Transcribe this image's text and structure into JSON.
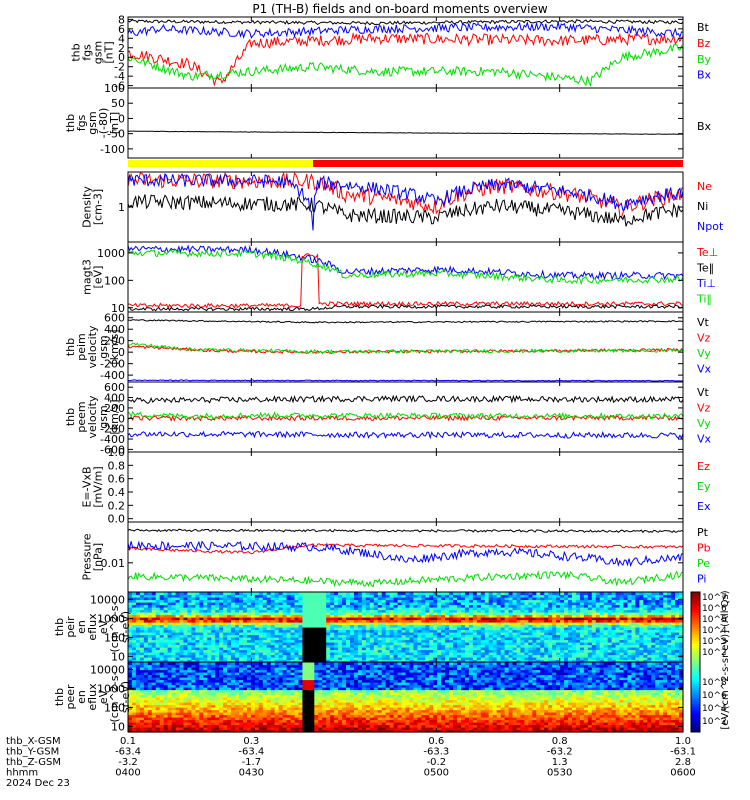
{
  "title": "P1 (TH-B) fields and on-board moments overview",
  "colors": {
    "black": "#000000",
    "red": "#ff0000",
    "green": "#00dd00",
    "blue": "#0000ff",
    "yellow": "#ffff00",
    "orange": "#ff8c00"
  },
  "mode_bar": {
    "segments": [
      {
        "from": 0.1,
        "to": 0.4,
        "color": "#ffff00"
      },
      {
        "from": 0.4,
        "to": 1.0,
        "color": "#ff0000"
      }
    ]
  },
  "chart_data": [
    {
      "id": "fgs",
      "type": "line",
      "ylabel": [
        "thb",
        "fgs",
        "gsm",
        "[nT]"
      ],
      "ylim": [
        -6.5,
        8.5
      ],
      "ticks": [
        [
          "8",
          "8"
        ],
        [
          "6",
          "6"
        ],
        [
          "4",
          "4"
        ],
        [
          "2",
          "2"
        ],
        [
          "0",
          "0"
        ],
        [
          "-2",
          "-2"
        ],
        [
          "-4",
          "-4"
        ],
        [
          "-6",
          "-6"
        ]
      ],
      "series": [
        {
          "name": "Bt",
          "color": "#000000",
          "base": 7.5,
          "noise": 0.35,
          "knots": [
            [
              0.1,
              7.6
            ],
            [
              0.5,
              7.2
            ],
            [
              0.8,
              7.6
            ],
            [
              1.0,
              7.4
            ]
          ]
        },
        {
          "name": "Bz",
          "color": "#ff0000",
          "base": 3,
          "noise": 1.2,
          "knots": [
            [
              0.1,
              1
            ],
            [
              0.2,
              -1.5
            ],
            [
              0.25,
              -5.5
            ],
            [
              0.3,
              3
            ],
            [
              0.5,
              4
            ],
            [
              0.8,
              3.5
            ],
            [
              1.0,
              4
            ]
          ]
        },
        {
          "name": "By",
          "color": "#00dd00",
          "base": -2,
          "noise": 1.0,
          "knots": [
            [
              0.1,
              0
            ],
            [
              0.2,
              -4
            ],
            [
              0.4,
              -2
            ],
            [
              0.5,
              -3
            ],
            [
              0.7,
              -3
            ],
            [
              0.85,
              -5
            ],
            [
              0.9,
              0
            ],
            [
              1.0,
              2
            ]
          ]
        },
        {
          "name": "Bx",
          "color": "#0000ff",
          "base": 5,
          "noise": 0.9,
          "knots": [
            [
              0.1,
              5
            ],
            [
              0.15,
              6
            ],
            [
              0.3,
              5
            ],
            [
              0.5,
              6
            ],
            [
              0.8,
              6.5
            ],
            [
              1.0,
              5
            ]
          ]
        }
      ]
    },
    {
      "id": "fgs_dsl",
      "type": "line",
      "ylabel": [
        "thb",
        "fgs",
        "gsm",
        "-(-80)",
        "[nT]"
      ],
      "ylim": [
        -130,
        100
      ],
      "ticks": [
        [
          "100",
          "100"
        ],
        [
          "50",
          "50"
        ],
        [
          "0",
          "0"
        ],
        [
          "-50",
          "-50"
        ],
        [
          "-100",
          "-100"
        ]
      ],
      "series": [
        {
          "name": "Bx",
          "color": "#000000",
          "base": -48,
          "noise": 0.6,
          "knots": [
            [
              0.1,
              -42
            ],
            [
              0.5,
              -47
            ],
            [
              1.0,
              -52
            ]
          ]
        }
      ]
    },
    {
      "id": "density",
      "type": "line",
      "log": true,
      "ylabel": [
        "Density",
        "[cm-3]"
      ],
      "ylim": [
        0.05,
        20
      ],
      "ticks": [
        [
          "1",
          "1"
        ]
      ],
      "series": [
        {
          "name": "Ne",
          "color": "#ff0000",
          "base": 8,
          "noise": 0.6,
          "knots": [
            [
              0.1,
              10
            ],
            [
              0.4,
              9
            ],
            [
              0.45,
              3
            ],
            [
              0.6,
              1
            ],
            [
              0.7,
              6
            ],
            [
              0.9,
              0.8
            ],
            [
              1.0,
              3
            ]
          ]
        },
        {
          "name": "Ni",
          "color": "#000000",
          "base": 1.5,
          "noise": 0.55,
          "knots": [
            [
              0.1,
              1.6
            ],
            [
              0.4,
              1.2
            ],
            [
              0.45,
              0.5
            ],
            [
              0.6,
              0.4
            ],
            [
              0.7,
              1.1
            ],
            [
              0.9,
              0.3
            ],
            [
              1.0,
              0.8
            ]
          ]
        },
        {
          "name": "Npot",
          "color": "#0000ff",
          "base": 8,
          "noise": 0.5,
          "knots": [
            [
              0.1,
              10
            ],
            [
              0.35,
              9
            ],
            [
              0.4,
              0.1
            ],
            [
              0.41,
              8
            ],
            [
              0.6,
              1.5
            ],
            [
              0.7,
              7
            ],
            [
              0.9,
              1.2
            ],
            [
              1.0,
              3.5
            ]
          ]
        }
      ]
    },
    {
      "id": "temp",
      "type": "line",
      "log": true,
      "ylabel": [
        "magt3",
        "[eV]"
      ],
      "ylim": [
        7,
        2500
      ],
      "ticks": [
        [
          "1000",
          "1000"
        ],
        [
          "100",
          "100"
        ],
        [
          "10",
          "10"
        ]
      ],
      "series": [
        {
          "name": "Te⊥",
          "color": "#ff0000",
          "base": 12,
          "noise": 0.15,
          "knots": [
            [
              0.1,
              12
            ],
            [
              0.38,
              12
            ],
            [
              0.38,
              800
            ],
            [
              0.41,
              800
            ],
            [
              0.41,
              14
            ],
            [
              1.0,
              14
            ]
          ]
        },
        {
          "name": "Te‖",
          "color": "#000000",
          "base": 11,
          "noise": 0.12,
          "knots": [
            [
              0.1,
              9
            ],
            [
              0.4,
              9
            ],
            [
              0.45,
              11
            ],
            [
              1.0,
              11
            ]
          ]
        },
        {
          "name": "Ti⊥",
          "color": "#0000ff",
          "base": 1200,
          "noise": 0.25,
          "knots": [
            [
              0.1,
              1400
            ],
            [
              0.3,
              1300
            ],
            [
              0.45,
              200
            ],
            [
              0.6,
              250
            ],
            [
              0.8,
              150
            ],
            [
              1.0,
              150
            ]
          ]
        },
        {
          "name": "Ti‖",
          "color": "#00dd00",
          "base": 1000,
          "noise": 0.25,
          "knots": [
            [
              0.1,
              1000
            ],
            [
              0.3,
              950
            ],
            [
              0.45,
              150
            ],
            [
              0.6,
              180
            ],
            [
              0.8,
              100
            ],
            [
              1.0,
              110
            ]
          ]
        }
      ]
    },
    {
      "id": "peim_v",
      "type": "line",
      "ylabel": [
        "thb",
        "peim",
        "velocity",
        "gsm",
        "[km/s]"
      ],
      "ylim": [
        -520,
        700
      ],
      "ticks": [
        [
          "600",
          "600"
        ],
        [
          "400",
          "400"
        ],
        [
          "200",
          "200"
        ],
        [
          "0",
          "0"
        ],
        [
          "-200",
          "-200"
        ],
        [
          "-400",
          "-400"
        ]
      ],
      "series": [
        {
          "name": "Vt",
          "color": "#000000",
          "base": 520,
          "noise": 12,
          "knots": [
            [
              0.1,
              560
            ],
            [
              0.4,
              520
            ],
            [
              1.0,
              540
            ]
          ]
        },
        {
          "name": "Vz",
          "color": "#ff0000",
          "base": 30,
          "noise": 25,
          "knots": [
            [
              0.1,
              100
            ],
            [
              0.25,
              20
            ],
            [
              0.4,
              0
            ],
            [
              1.0,
              40
            ]
          ]
        },
        {
          "name": "Vy",
          "color": "#00dd00",
          "base": 20,
          "noise": 30,
          "knots": [
            [
              0.1,
              150
            ],
            [
              0.2,
              50
            ],
            [
              0.4,
              10
            ],
            [
              1.0,
              30
            ]
          ]
        },
        {
          "name": "Vx",
          "color": "#0000ff",
          "base": -500,
          "noise": 8,
          "knots": [
            [
              0.1,
              -490
            ],
            [
              1.0,
              -500
            ]
          ]
        }
      ]
    },
    {
      "id": "peem_v",
      "type": "line",
      "ylabel": [
        "thb",
        "peem",
        "velocity",
        "gsm",
        "[km/s]"
      ],
      "ylim": [
        -650,
        700
      ],
      "ticks": [
        [
          "600",
          "600"
        ],
        [
          "400",
          "400"
        ],
        [
          "200",
          "200"
        ],
        [
          "0",
          "0"
        ],
        [
          "-200",
          "-200"
        ],
        [
          "-400",
          "-400"
        ],
        [
          "-600",
          "-600"
        ]
      ],
      "series": [
        {
          "name": "Vt",
          "color": "#000000",
          "base": 350,
          "noise": 55,
          "knots": [
            [
              0.1,
              340
            ],
            [
              0.5,
              380
            ],
            [
              1.0,
              360
            ]
          ]
        },
        {
          "name": "Vz",
          "color": "#ff0000",
          "base": 0,
          "noise": 45,
          "knots": [
            [
              0.1,
              0
            ],
            [
              1.0,
              10
            ]
          ]
        },
        {
          "name": "Vy",
          "color": "#00dd00",
          "base": 80,
          "noise": 50,
          "knots": [
            [
              0.1,
              80
            ],
            [
              0.2,
              40
            ],
            [
              0.3,
              60
            ],
            [
              1.0,
              40
            ]
          ]
        },
        {
          "name": "Vx",
          "color": "#0000ff",
          "base": -300,
          "noise": 55,
          "knots": [
            [
              0.1,
              -300
            ],
            [
              0.5,
              -320
            ],
            [
              1.0,
              -330
            ]
          ]
        }
      ]
    },
    {
      "id": "efield",
      "type": "line",
      "ylabel": [
        "E=-VxB",
        "[mV/m]"
      ],
      "ylim": [
        -0.05,
        1.0
      ],
      "ticks": [
        [
          "1.0",
          "1.0"
        ],
        [
          "0.8",
          "0.8"
        ],
        [
          "0.6",
          "0.6"
        ],
        [
          "0.4",
          "0.4"
        ],
        [
          "0.2",
          "0.2"
        ],
        [
          "0.0",
          "0.0"
        ]
      ],
      "series": [
        {
          "name": "Ez",
          "color": "#ff0000",
          "base": 0,
          "noise": 0,
          "knots": []
        },
        {
          "name": "Ey",
          "color": "#00dd00",
          "base": 0,
          "noise": 0,
          "knots": []
        },
        {
          "name": "Ex",
          "color": "#0000ff",
          "base": 0,
          "noise": 0,
          "knots": []
        }
      ]
    },
    {
      "id": "pressure",
      "type": "line",
      "log": true,
      "ylabel": [
        "Pressure",
        "[nPa]"
      ],
      "ylim": [
        0.001,
        0.25
      ],
      "ticks": [
        [
          "0.01",
          "0.01"
        ]
      ],
      "series": [
        {
          "name": "Pt",
          "color": "#000000",
          "base": 0.12,
          "noise": 0.08,
          "knots": [
            [
              0.1,
              0.13
            ],
            [
              1.0,
              0.12
            ]
          ]
        },
        {
          "name": "Pb",
          "color": "#ff0000",
          "base": 0.03,
          "noise": 0.1,
          "knots": [
            [
              0.1,
              0.03
            ],
            [
              0.3,
              0.022
            ],
            [
              0.4,
              0.04
            ],
            [
              1.0,
              0.035
            ]
          ]
        },
        {
          "name": "Pe",
          "color": "#00dd00",
          "base": 0.003,
          "noise": 0.25,
          "knots": [
            [
              0.1,
              0.0035
            ],
            [
              0.5,
              0.002
            ],
            [
              0.8,
              0.004
            ],
            [
              0.9,
              0.002
            ],
            [
              1.0,
              0.004
            ]
          ]
        },
        {
          "name": "Pi",
          "color": "#0000ff",
          "base": 0.035,
          "noise": 0.3,
          "knots": [
            [
              0.1,
              0.04
            ],
            [
              0.4,
              0.035
            ],
            [
              0.55,
              0.012
            ],
            [
              0.7,
              0.025
            ],
            [
              0.9,
              0.01
            ],
            [
              1.0,
              0.015
            ]
          ]
        }
      ]
    },
    {
      "id": "peir",
      "type": "heatmap",
      "ylabel": [
        "thb",
        "peir",
        "en",
        "eflux",
        "eV",
        "(cm^2-s-",
        "sr-eV)"
      ],
      "ylim": [
        5,
        25000
      ],
      "log": true,
      "ticks": [
        [
          "10000",
          "10000"
        ],
        [
          "1000",
          "1000"
        ],
        [
          "100",
          "100"
        ],
        [
          "10",
          "10"
        ]
      ]
    },
    {
      "id": "peer",
      "type": "heatmap",
      "ylabel": [
        "thb",
        "peer",
        "en",
        "eflux",
        "eV",
        "(cm^2-s-",
        "sr-eV)"
      ],
      "ylim": [
        5,
        25000
      ],
      "log": true,
      "ticks": [
        [
          "10000",
          "10000"
        ],
        [
          "1000",
          "1000"
        ],
        [
          "100",
          "100"
        ],
        [
          "10",
          "10"
        ]
      ]
    }
  ],
  "colorbar": {
    "label": "[eV/(cm^2-s-sr-eV)] (All Qs)",
    "top_ticks": [
      "10^7",
      "10^6",
      "10^5",
      "10^4",
      "10^3",
      "10^2"
    ],
    "bottom_ticks": [
      "10^8",
      "10^6",
      "10^4",
      "10^2"
    ]
  },
  "xaxis": {
    "rows": [
      {
        "label": "thb_X-GSM",
        "values": [
          "0.1",
          "0.3",
          "0.6",
          "0.8",
          "1.0"
        ]
      },
      {
        "label": "thb_Y-GSM",
        "values": [
          "-63.4",
          "-63.4",
          "-63.3",
          "-63.2",
          "-63.1"
        ]
      },
      {
        "label": "thb_Z-GSM",
        "values": [
          "-3.2",
          "-1.7",
          "-0.2",
          "1.3",
          "2.8"
        ]
      },
      {
        "label": "hhmm",
        "values": [
          "0400",
          "0430",
          "0500",
          "0530",
          "0600"
        ]
      }
    ],
    "date": "2024 Dec 23"
  }
}
